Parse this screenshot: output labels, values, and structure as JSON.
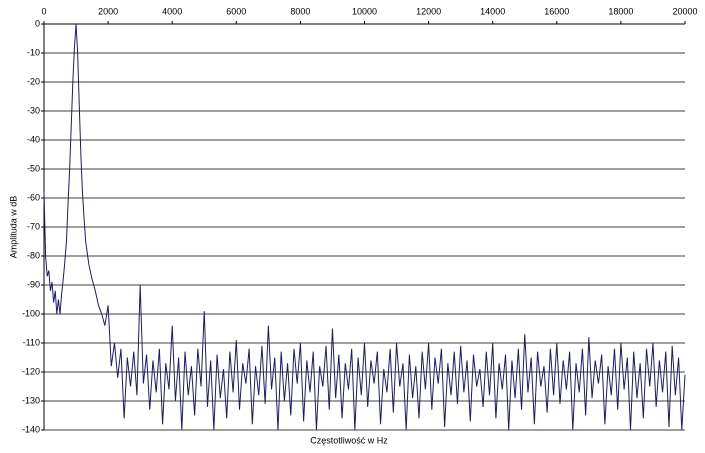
{
  "chart_data": {
    "type": "line",
    "x_label": "Częstotliwość w Hz",
    "y_label": "Amplituda w dB",
    "xlim": [
      0,
      20000
    ],
    "ylim": [
      -140,
      0
    ],
    "xticks": [
      0,
      2000,
      4000,
      6000,
      8000,
      10000,
      12000,
      14000,
      16000,
      18000,
      20000
    ],
    "yticks": [
      0,
      -10,
      -20,
      -30,
      -40,
      -50,
      -60,
      -70,
      -80,
      -90,
      -100,
      -110,
      -120,
      -130,
      -140
    ],
    "grid": true,
    "series": [
      {
        "color": "#1c1c6b",
        "x": [
          0,
          50,
          100,
          150,
          200,
          250,
          300,
          350,
          400,
          450,
          500,
          550,
          600,
          650,
          700,
          750,
          800,
          850,
          900,
          950,
          1000,
          1050,
          1100,
          1150,
          1200,
          1250,
          1300,
          1400,
          1500,
          1600,
          1700,
          1800,
          1900,
          2000,
          2100,
          2200,
          2300,
          2400,
          2500,
          2600,
          2700,
          2800,
          2900,
          3000,
          3100,
          3200,
          3300,
          3400,
          3500,
          3600,
          3700,
          3800,
          3900,
          4000,
          4100,
          4200,
          4300,
          4400,
          4500,
          4600,
          4700,
          4800,
          4900,
          5000,
          5100,
          5200,
          5300,
          5400,
          5500,
          5600,
          5700,
          5800,
          5900,
          6000,
          6100,
          6200,
          6300,
          6400,
          6500,
          6600,
          6700,
          6800,
          6900,
          7000,
          7100,
          7200,
          7300,
          7400,
          7500,
          7600,
          7700,
          7800,
          7900,
          8000,
          8100,
          8200,
          8300,
          8400,
          8500,
          8600,
          8700,
          8800,
          8900,
          9000,
          9100,
          9200,
          9300,
          9400,
          9500,
          9600,
          9700,
          9800,
          9900,
          10000,
          10100,
          10200,
          10300,
          10400,
          10500,
          10600,
          10700,
          10800,
          10900,
          11000,
          11100,
          11200,
          11300,
          11400,
          11500,
          11600,
          11700,
          11800,
          11900,
          12000,
          12100,
          12200,
          12300,
          12400,
          12500,
          12600,
          12700,
          12800,
          12900,
          13000,
          13100,
          13200,
          13300,
          13400,
          13500,
          13600,
          13700,
          13800,
          13900,
          14000,
          14100,
          14200,
          14300,
          14400,
          14500,
          14600,
          14700,
          14800,
          14900,
          15000,
          15100,
          15200,
          15300,
          15400,
          15500,
          15600,
          15700,
          15800,
          15900,
          16000,
          16100,
          16200,
          16300,
          16400,
          16500,
          16600,
          16700,
          16800,
          16900,
          17000,
          17100,
          17200,
          17300,
          17400,
          17500,
          17600,
          17700,
          17800,
          17900,
          18000,
          18100,
          18200,
          18300,
          18400,
          18500,
          18600,
          18700,
          18800,
          18900,
          19000,
          19100,
          19200,
          19300,
          19400,
          19500,
          19600,
          19700,
          19800,
          19900,
          20000
        ],
        "values": [
          -58,
          -80,
          -87,
          -85,
          -92,
          -89,
          -96,
          -92,
          -100,
          -95,
          -100,
          -93,
          -88,
          -82,
          -75,
          -62,
          -50,
          -35,
          -20,
          -8,
          0,
          -10,
          -28,
          -45,
          -58,
          -67,
          -75,
          -83,
          -88,
          -92,
          -97,
          -100,
          -104,
          -97,
          -118,
          -110,
          -122,
          -112,
          -136,
          -115,
          -125,
          -113,
          -128,
          -90,
          -124,
          -114,
          -133,
          -116,
          -127,
          -112,
          -138,
          -117,
          -126,
          -104,
          -130,
          -115,
          -140,
          -113,
          -128,
          -118,
          -135,
          -112,
          -125,
          -99,
          -132,
          -116,
          -140,
          -114,
          -129,
          -119,
          -136,
          -113,
          -127,
          -109,
          -133,
          -117,
          -124,
          -112,
          -138,
          -118,
          -128,
          -111,
          -131,
          -104,
          -126,
          -115,
          -140,
          -113,
          -130,
          -117,
          -135,
          -112,
          -124,
          -110,
          -137,
          -116,
          -127,
          -113,
          -140,
          -118,
          -125,
          -111,
          -133,
          -105,
          -129,
          -114,
          -136,
          -117,
          -126,
          -112,
          -140,
          -115,
          -128,
          -110,
          -132,
          -116,
          -124,
          -113,
          -138,
          -119,
          -127,
          -112,
          -134,
          -110,
          -125,
          -117,
          -140,
          -114,
          -129,
          -118,
          -136,
          -113,
          -126,
          -110,
          -133,
          -115,
          -124,
          -112,
          -139,
          -117,
          -128,
          -113,
          -131,
          -111,
          -127,
          -116,
          -137,
          -114,
          -125,
          -119,
          -132,
          -113,
          -128,
          -110,
          -136,
          -117,
          -126,
          -114,
          -140,
          -116,
          -129,
          -112,
          -133,
          -107,
          -127,
          -115,
          -138,
          -113,
          -125,
          -118,
          -134,
          -112,
          -128,
          -110,
          -131,
          -116,
          -126,
          -113,
          -140,
          -117,
          -127,
          -112,
          -135,
          -108,
          -129,
          -116,
          -124,
          -114,
          -138,
          -118,
          -128,
          -112,
          -133,
          -110,
          -126,
          -115,
          -140,
          -113,
          -129,
          -117,
          -136,
          -112,
          -125,
          -110,
          -132,
          -116,
          -127,
          -113,
          -139,
          -111,
          -128,
          -115,
          -140,
          -121
        ]
      }
    ]
  }
}
